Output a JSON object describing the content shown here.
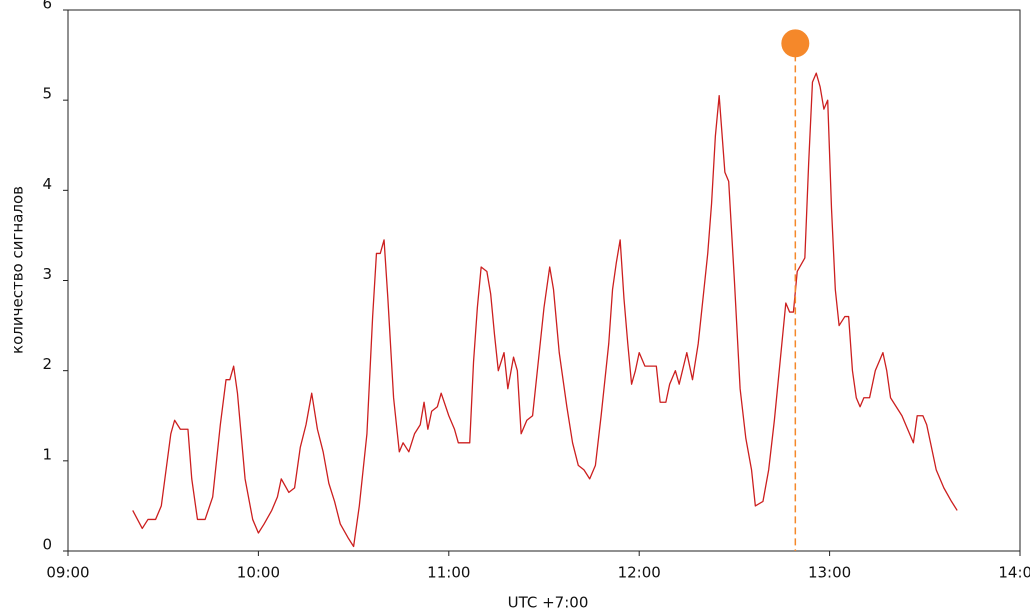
{
  "chart_data": {
    "type": "line",
    "y_label": "количество сигналов",
    "x_label": "UTC  +7:00",
    "color": "#cc1f1f",
    "x": [
      9.34,
      9.39,
      9.42,
      9.46,
      9.49,
      9.54,
      9.56,
      9.59,
      9.63,
      9.65,
      9.68,
      9.72,
      9.76,
      9.8,
      9.83,
      9.85,
      9.87,
      9.89,
      9.93,
      9.97,
      10.0,
      10.03,
      10.07,
      10.1,
      10.12,
      10.16,
      10.19,
      10.22,
      10.25,
      10.28,
      10.31,
      10.34,
      10.37,
      10.4,
      10.43,
      10.47,
      10.5,
      10.53,
      10.57,
      10.6,
      10.62,
      10.64,
      10.66,
      10.68,
      10.71,
      10.74,
      10.76,
      10.79,
      10.82,
      10.85,
      10.87,
      10.89,
      10.91,
      10.94,
      10.96,
      11.0,
      11.03,
      11.05,
      11.08,
      11.11,
      11.13,
      11.15,
      11.17,
      11.2,
      11.22,
      11.24,
      11.26,
      11.29,
      11.31,
      11.34,
      11.36,
      11.38,
      11.41,
      11.44,
      11.47,
      11.5,
      11.53,
      11.55,
      11.58,
      11.62,
      11.65,
      11.68,
      11.71,
      11.74,
      11.77,
      11.8,
      11.84,
      11.86,
      11.88,
      11.9,
      11.92,
      11.94,
      11.96,
      11.98,
      12.0,
      12.03,
      12.06,
      12.09,
      12.11,
      12.14,
      12.16,
      12.19,
      12.21,
      12.25,
      12.28,
      12.31,
      12.34,
      12.36,
      12.38,
      12.4,
      12.42,
      12.45,
      12.47,
      12.5,
      12.53,
      12.56,
      12.59,
      12.61,
      12.65,
      12.68,
      12.71,
      12.74,
      12.77,
      12.79,
      12.81,
      12.83,
      12.87,
      12.89,
      12.91,
      12.93,
      12.95,
      12.97,
      12.99,
      13.01,
      13.03,
      13.05,
      13.08,
      13.1,
      13.12,
      13.14,
      13.16,
      13.18,
      13.21,
      13.24,
      13.28,
      13.3,
      13.32,
      13.35,
      13.38,
      13.41,
      13.44,
      13.46,
      13.49,
      13.51,
      13.53,
      13.56,
      13.6,
      13.64,
      13.67
    ],
    "values": [
      0.45,
      0.25,
      0.35,
      0.35,
      0.5,
      1.3,
      1.45,
      1.35,
      1.35,
      0.8,
      0.35,
      0.35,
      0.6,
      1.4,
      1.9,
      1.9,
      2.05,
      1.75,
      0.8,
      0.35,
      0.2,
      0.3,
      0.45,
      0.6,
      0.8,
      0.65,
      0.7,
      1.15,
      1.4,
      1.75,
      1.35,
      1.1,
      0.75,
      0.55,
      0.3,
      0.15,
      0.05,
      0.5,
      1.3,
      2.6,
      3.3,
      3.3,
      3.45,
      2.8,
      1.7,
      1.1,
      1.2,
      1.1,
      1.3,
      1.4,
      1.65,
      1.35,
      1.55,
      1.6,
      1.75,
      1.5,
      1.35,
      1.2,
      1.2,
      1.2,
      2.1,
      2.7,
      3.15,
      3.1,
      2.85,
      2.4,
      2.0,
      2.2,
      1.8,
      2.15,
      2.0,
      1.3,
      1.45,
      1.5,
      2.1,
      2.7,
      3.15,
      2.9,
      2.2,
      1.6,
      1.2,
      0.95,
      0.9,
      0.8,
      0.95,
      1.5,
      2.3,
      2.9,
      3.2,
      3.45,
      2.8,
      2.3,
      1.85,
      2.0,
      2.2,
      2.05,
      2.05,
      2.05,
      1.65,
      1.65,
      1.85,
      2.0,
      1.85,
      2.2,
      1.9,
      2.3,
      2.9,
      3.3,
      3.85,
      4.6,
      5.05,
      4.2,
      4.1,
      3.0,
      1.8,
      1.25,
      0.9,
      0.5,
      0.55,
      0.9,
      1.45,
      2.1,
      2.75,
      2.65,
      2.65,
      3.1,
      3.25,
      4.3,
      5.2,
      5.3,
      5.15,
      4.9,
      5.0,
      3.8,
      2.9,
      2.5,
      2.6,
      2.6,
      2.0,
      1.7,
      1.6,
      1.7,
      1.7,
      2.0,
      2.2,
      2.0,
      1.7,
      1.6,
      1.5,
      1.35,
      1.2,
      1.5,
      1.5,
      1.4,
      1.2,
      0.9,
      0.7,
      0.55,
      0.45
    ],
    "marker": {
      "x": 12.82,
      "y": 5.63,
      "color": "#f5882a"
    },
    "xlim": [
      9,
      14
    ],
    "xticks": [
      {
        "value": 9,
        "label": "09:00"
      },
      {
        "value": 10,
        "label": "10:00"
      },
      {
        "value": 11,
        "label": "11:00"
      },
      {
        "value": 12,
        "label": "12:00"
      },
      {
        "value": 13,
        "label": "13:00"
      },
      {
        "value": 14,
        "label": "14:00"
      }
    ],
    "ylim": [
      0,
      6
    ],
    "yticks": [
      0,
      1,
      2,
      3,
      4,
      5,
      6
    ]
  }
}
